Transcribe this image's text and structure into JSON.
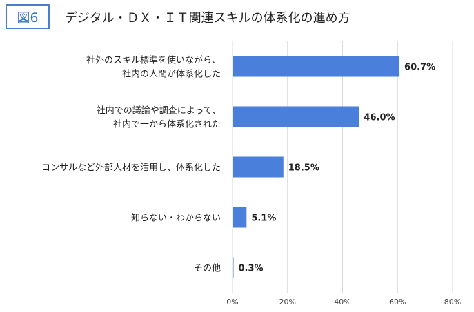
{
  "figure_badge": "図6",
  "chart_data": {
    "type": "bar",
    "orientation": "horizontal",
    "title": "デジタル・ＤＸ・ＩＴ関連スキルの体系化の進め方",
    "categories": [
      [
        "社外のスキル標準を使いながら、",
        "社内の人間が体系化した"
      ],
      [
        "社内での議論や調査によって、",
        "社内で一から体系化された"
      ],
      [
        "コンサルなど外部人材を活用し、体系化した"
      ],
      [
        "知らない・わからない"
      ],
      [
        "その他"
      ]
    ],
    "values": [
      60.7,
      46.0,
      18.5,
      5.1,
      0.3
    ],
    "value_labels": [
      "60.7%",
      "46.0%",
      "18.5%",
      "5.1%",
      "0.3%"
    ],
    "xlim": [
      0,
      80
    ],
    "xticks": [
      0,
      20,
      40,
      60,
      80
    ],
    "xtick_labels": [
      "0%",
      "20%",
      "40%",
      "60%",
      "80%"
    ],
    "grid": true,
    "bar_color": "#4a7fdc",
    "grid_color": "#d9d9d9"
  }
}
